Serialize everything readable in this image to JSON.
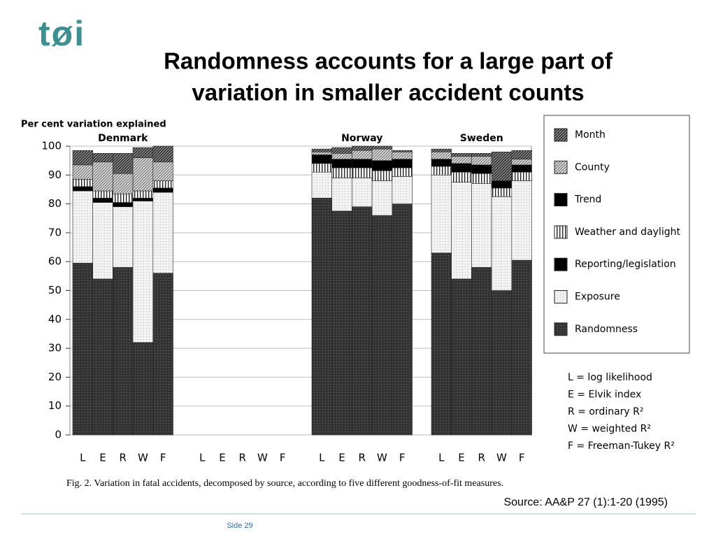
{
  "logo": "tøi",
  "slide": {
    "title_lines": [
      "Randomness accounts for a large part of",
      "variation in smaller accident counts"
    ],
    "source": "Source: AA&P 27 (1):1-20 (1995)",
    "footer": "Side 29"
  },
  "chart_data": {
    "type": "bar",
    "stacked": true,
    "y_label": "Per cent variation explained",
    "caption": "Fig. 2. Variation in fatal accidents, decomposed by source, according to five different goodness-of-fit measures.",
    "groups": [
      "Denmark",
      null,
      "Norway",
      "Sweden"
    ],
    "categories": [
      "L",
      "E",
      "R",
      "W",
      "F",
      "L",
      "E",
      "R",
      "W",
      "F",
      "L",
      "E",
      "R",
      "W",
      "F",
      "L",
      "E",
      "R",
      "W",
      "F"
    ],
    "ylim": [
      0,
      100
    ],
    "yticks": [
      0,
      10,
      20,
      30,
      40,
      50,
      60,
      70,
      80,
      90,
      100
    ],
    "grid": true,
    "series": [
      {
        "name": "Randomness",
        "color": "#333333",
        "pattern": "dots",
        "values": [
          59.5,
          54,
          58,
          32,
          56,
          null,
          null,
          null,
          null,
          null,
          82,
          77.5,
          79,
          76,
          80,
          63,
          54,
          58,
          50,
          60.5
        ]
      },
      {
        "name": "Exposure",
        "color": "#f2f2f2",
        "pattern": "light-dots",
        "values": [
          25,
          26.5,
          21,
          49,
          28,
          null,
          null,
          null,
          null,
          null,
          9,
          11.5,
          10,
          12,
          9.5,
          27,
          33.5,
          29,
          32.5,
          27.5
        ]
      },
      {
        "name": "Reporting/legislation",
        "color": "#000000",
        "pattern": "solid",
        "values": [
          1.5,
          1.5,
          1.5,
          1,
          1.5,
          null,
          null,
          null,
          null,
          null,
          0,
          0,
          0,
          0,
          0,
          0,
          0,
          0,
          0,
          0
        ]
      },
      {
        "name": "Weather and daylight",
        "color": "#222222",
        "pattern": "vertical",
        "values": [
          2.5,
          2.5,
          3,
          2.5,
          2.5,
          null,
          null,
          null,
          null,
          null,
          3,
          3.5,
          3.5,
          3.5,
          3,
          3,
          3.5,
          3.5,
          3,
          3
        ]
      },
      {
        "name": "Trend",
        "color": "#000000",
        "pattern": "solid",
        "values": [
          0,
          0,
          0,
          0,
          0,
          null,
          null,
          null,
          null,
          null,
          3,
          3,
          3,
          3.5,
          3,
          2.5,
          3,
          3,
          2.5,
          2.5
        ]
      },
      {
        "name": "County",
        "color": "#555555",
        "pattern": "hatch",
        "values": [
          5,
          10,
          7,
          11.5,
          6.5,
          null,
          null,
          null,
          null,
          null,
          1,
          2,
          3,
          4,
          2.5,
          2.5,
          2.5,
          3,
          0,
          2
        ]
      },
      {
        "name": "Month",
        "color": "#222222",
        "pattern": "dense-hatch",
        "values": [
          5,
          3,
          7,
          3.5,
          5.5,
          null,
          null,
          null,
          null,
          null,
          1,
          2,
          1.5,
          1,
          0.5,
          1,
          1,
          1,
          10,
          3
        ]
      }
    ],
    "notes": [
      "L = log likelihood",
      "E = Elvik index",
      "R = ordinary R²",
      "W = weighted R²",
      "F = Freeman-Tukey R²"
    ]
  }
}
